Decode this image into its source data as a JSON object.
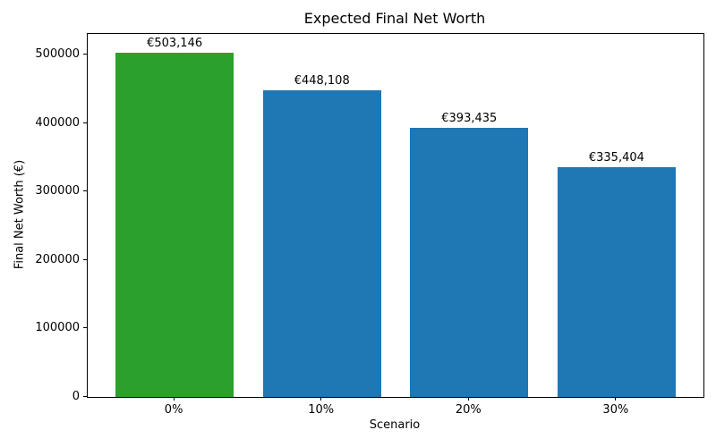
{
  "chart_data": {
    "type": "bar",
    "title": "Expected Final Net Worth",
    "xlabel": "Scenario",
    "ylabel": "Final Net Worth (€)",
    "categories": [
      "0%",
      "10%",
      "20%",
      "30%"
    ],
    "values": [
      503146,
      448108,
      393435,
      335404
    ],
    "value_labels": [
      "€503,146",
      "€448,108",
      "€393,435",
      "€335,404"
    ],
    "bar_colors": [
      "#2ca02c",
      "#1f77b4",
      "#1f77b4",
      "#1f77b4"
    ],
    "ylim": [
      0,
      530000
    ],
    "yticks": [
      0,
      100000,
      200000,
      300000,
      400000,
      500000
    ],
    "ytick_labels": [
      "0",
      "100000",
      "200000",
      "300000",
      "400000",
      "500000"
    ],
    "xlim": [
      -0.59,
      3.59
    ],
    "bar_width": 0.8,
    "grid": false,
    "legend": "none"
  }
}
